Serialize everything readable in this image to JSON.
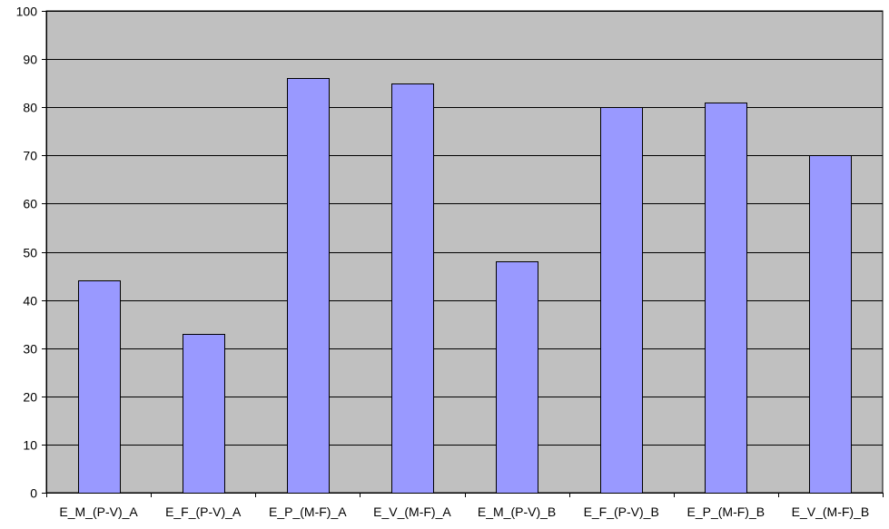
{
  "chart_data": {
    "type": "bar",
    "categories": [
      "E_M_(P-V)_A",
      "E_F_(P-V)_A",
      "E_P_(M-F)_A",
      "E_V_(M-F)_A",
      "E_M_(P-V)_B",
      "E_F_(P-V)_B",
      "E_P_(M-F)_B",
      "E_V_(M-F)_B"
    ],
    "values": [
      44,
      33,
      86,
      85,
      48,
      80,
      81,
      70
    ],
    "title": "",
    "xlabel": "",
    "ylabel": "",
    "ylim": [
      0,
      100
    ],
    "yticks": [
      0,
      10,
      20,
      30,
      40,
      50,
      60,
      70,
      80,
      90,
      100
    ],
    "grid": true,
    "legend": "none",
    "colors": {
      "bar_fill": "#9999FF",
      "bar_stroke": "#000000",
      "plot_background": "#C0C0C0",
      "gridline": "#000000",
      "axis": "#000000",
      "text": "#000000"
    }
  }
}
